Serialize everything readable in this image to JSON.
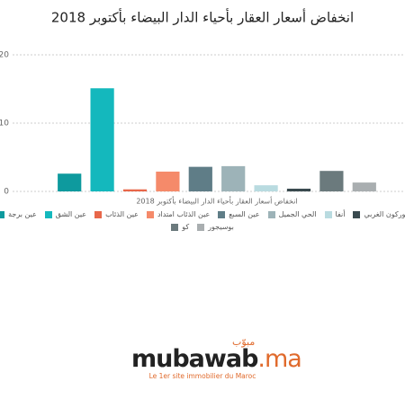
{
  "chart_data": {
    "type": "bar",
    "title": "انخفاض أسعار العقار بأحياء الدار البيضاء بأكتوبر 2018",
    "categories": [
      "انخفاض أسعار العقار بأحياء الدار البيضاء بأكتوبر 2018"
    ],
    "series": [
      {
        "name": "عين برجة",
        "color": "#0e9a9e",
        "values": [
          2.6
        ]
      },
      {
        "name": "عين الشق",
        "color": "#14b8bd",
        "values": [
          15.1
        ]
      },
      {
        "name": "عين الذئاب",
        "color": "#e8674a",
        "values": [
          0.3
        ]
      },
      {
        "name": "عين الذئاب امتداد",
        "color": "#f58a6a",
        "values": [
          2.9
        ]
      },
      {
        "name": "عين السبع",
        "color": "#5f7d87",
        "values": [
          3.6
        ]
      },
      {
        "name": "الحي الجميل",
        "color": "#9db3b8",
        "values": [
          3.7
        ]
      },
      {
        "name": "أنفا",
        "color": "#b9dbe0",
        "values": [
          0.9
        ]
      },
      {
        "name": "بوركون الغربي",
        "color": "#3a4a4f",
        "values": [
          0.4
        ]
      },
      {
        "name": "كو",
        "color": "#6b7a7d",
        "values": [
          3.0
        ]
      },
      {
        "name": "بوسيجور",
        "color": "#a9aeb0",
        "values": [
          1.3
        ]
      }
    ],
    "ylim": [
      0,
      20
    ],
    "yticks": [
      0,
      10,
      20
    ],
    "grid": true
  },
  "footer": {
    "arabic": "مبوّب",
    "brand": "mubawab",
    "tld": ".ma",
    "tagline": "Le 1er site immobilier du Maroc"
  }
}
